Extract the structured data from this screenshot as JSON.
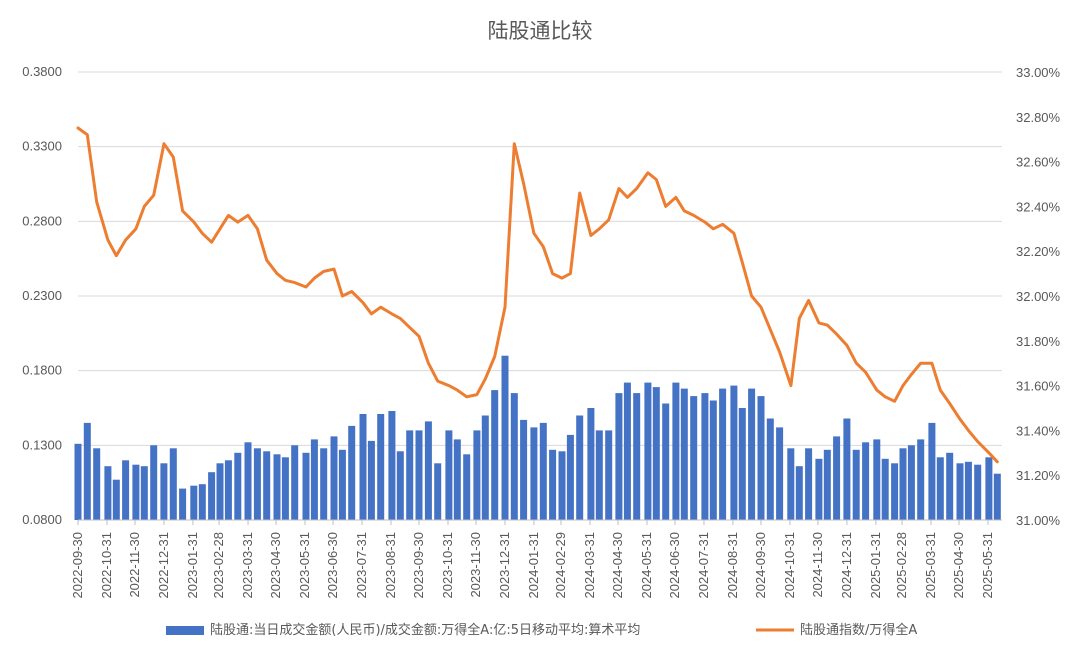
{
  "chart_data": {
    "type": "bar+line",
    "title": "陆股通比较",
    "x_tick_labels": [
      "2022-09-30",
      "2022-10-31",
      "2022-11-30",
      "2022-12-31",
      "2023-01-31",
      "2023-02-28",
      "2023-03-31",
      "2023-04-30",
      "2023-05-31",
      "2023-06-30",
      "2023-07-31",
      "2023-08-31",
      "2023-09-30",
      "2023-10-31",
      "2023-11-30",
      "2023-12-31",
      "2024-01-31",
      "2024-02-29",
      "2024-03-31",
      "2024-04-30",
      "2024-05-31",
      "2024-06-30",
      "2024-07-31",
      "2024-08-31",
      "2024-09-30",
      "2024-10-31",
      "2024-11-30",
      "2024-12-31",
      "2025-01-31",
      "2025-02-28",
      "2025-03-31",
      "2025-04-30",
      "2025-05-31"
    ],
    "left_axis": {
      "min": 0.08,
      "max": 0.38,
      "ticks": [
        "0.0800",
        "0.1300",
        "0.1800",
        "0.2300",
        "0.2800",
        "0.3300",
        "0.3800"
      ]
    },
    "right_axis": {
      "min": 31.0,
      "max": 33.0,
      "ticks": [
        "31.00%",
        "31.20%",
        "31.40%",
        "31.60%",
        "31.80%",
        "32.00%",
        "32.20%",
        "32.40%",
        "32.60%",
        "32.80%",
        "33.00%"
      ]
    },
    "grid": true,
    "legend_position": "bottom",
    "series": [
      {
        "name": "陆股通:当日成交金额(人民币)/成交金额:万得全A:亿:5日移动平均:算术平均",
        "kind": "bar",
        "axis": "left",
        "color": "#4472C4",
        "x": [
          "2022-09-30",
          "2022-10-10",
          "2022-10-20",
          "2022-11-01",
          "2022-11-10",
          "2022-11-20",
          "2022-12-01",
          "2022-12-10",
          "2022-12-20",
          "2022-12-31",
          "2023-01-10",
          "2023-01-20",
          "2023-02-01",
          "2023-02-10",
          "2023-02-20",
          "2023-03-01",
          "2023-03-10",
          "2023-03-20",
          "2023-03-31",
          "2023-04-10",
          "2023-04-20",
          "2023-05-01",
          "2023-05-10",
          "2023-05-20",
          "2023-06-01",
          "2023-06-10",
          "2023-06-20",
          "2023-07-01",
          "2023-07-10",
          "2023-07-20",
          "2023-08-01",
          "2023-08-10",
          "2023-08-20",
          "2023-09-01",
          "2023-09-10",
          "2023-09-20",
          "2023-09-30",
          "2023-10-10",
          "2023-10-20",
          "2023-11-01",
          "2023-11-10",
          "2023-11-20",
          "2023-12-01",
          "2023-12-10",
          "2023-12-20",
          "2023-12-31",
          "2024-01-10",
          "2024-01-20",
          "2024-01-31",
          "2024-02-10",
          "2024-02-20",
          "2024-03-01",
          "2024-03-10",
          "2024-03-20",
          "2024-04-01",
          "2024-04-10",
          "2024-04-20",
          "2024-05-01",
          "2024-05-10",
          "2024-05-20",
          "2024-06-01",
          "2024-06-10",
          "2024-06-20",
          "2024-07-01",
          "2024-07-10",
          "2024-07-20",
          "2024-08-01",
          "2024-08-10",
          "2024-08-20",
          "2024-09-01",
          "2024-09-10",
          "2024-09-20",
          "2024-09-30",
          "2024-10-10",
          "2024-10-20",
          "2024-11-01",
          "2024-11-10",
          "2024-11-20",
          "2024-12-01",
          "2024-12-10",
          "2024-12-20",
          "2024-12-31",
          "2025-01-10",
          "2025-01-20",
          "2025-02-01",
          "2025-02-10",
          "2025-02-20",
          "2025-03-01",
          "2025-03-10",
          "2025-03-20",
          "2025-04-01",
          "2025-04-10",
          "2025-04-20",
          "2025-05-01",
          "2025-05-10",
          "2025-05-20",
          "2025-06-01",
          "2025-06-10"
        ],
        "values": [
          0.131,
          0.145,
          0.128,
          0.116,
          0.107,
          0.12,
          0.117,
          0.116,
          0.13,
          0.118,
          0.128,
          0.101,
          0.103,
          0.104,
          0.112,
          0.118,
          0.12,
          0.125,
          0.132,
          0.128,
          0.126,
          0.124,
          0.122,
          0.13,
          0.125,
          0.134,
          0.128,
          0.136,
          0.127,
          0.143,
          0.151,
          0.133,
          0.151,
          0.153,
          0.126,
          0.14,
          0.14,
          0.146,
          0.118,
          0.14,
          0.134,
          0.124,
          0.14,
          0.15,
          0.167,
          0.19,
          0.165,
          0.147,
          0.142,
          0.145,
          0.127,
          0.126,
          0.137,
          0.15,
          0.155,
          0.14,
          0.14,
          0.165,
          0.172,
          0.165,
          0.172,
          0.169,
          0.158,
          0.172,
          0.168,
          0.163,
          0.165,
          0.16,
          0.168,
          0.17,
          0.155,
          0.168,
          0.163,
          0.148,
          0.142,
          0.128,
          0.116,
          0.128,
          0.121,
          0.127,
          0.136,
          0.148,
          0.127,
          0.132,
          0.134,
          0.121,
          0.118,
          0.128,
          0.13,
          0.134,
          0.145,
          0.122,
          0.125,
          0.118,
          0.119,
          0.117,
          0.122,
          0.111
        ]
      },
      {
        "name": "陆股通指数/万得全A",
        "kind": "line",
        "axis": "right",
        "color": "#ED7D31",
        "x": [
          "2022-09-30",
          "2022-10-10",
          "2022-10-20",
          "2022-11-01",
          "2022-11-10",
          "2022-11-20",
          "2022-12-01",
          "2022-12-10",
          "2022-12-20",
          "2022-12-31",
          "2023-01-10",
          "2023-01-20",
          "2023-02-01",
          "2023-02-10",
          "2023-02-20",
          "2023-03-01",
          "2023-03-10",
          "2023-03-20",
          "2023-03-31",
          "2023-04-10",
          "2023-04-20",
          "2023-05-01",
          "2023-05-10",
          "2023-05-20",
          "2023-06-01",
          "2023-06-10",
          "2023-06-20",
          "2023-07-01",
          "2023-07-10",
          "2023-07-20",
          "2023-08-01",
          "2023-08-10",
          "2023-08-20",
          "2023-09-01",
          "2023-09-10",
          "2023-09-20",
          "2023-09-30",
          "2023-10-10",
          "2023-10-20",
          "2023-11-01",
          "2023-11-10",
          "2023-11-20",
          "2023-12-01",
          "2023-12-10",
          "2023-12-20",
          "2023-12-31",
          "2024-01-10",
          "2024-01-20",
          "2024-01-31",
          "2024-02-10",
          "2024-02-20",
          "2024-03-01",
          "2024-03-10",
          "2024-03-20",
          "2024-04-01",
          "2024-04-10",
          "2024-04-20",
          "2024-05-01",
          "2024-05-10",
          "2024-05-20",
          "2024-06-01",
          "2024-06-10",
          "2024-06-20",
          "2024-07-01",
          "2024-07-10",
          "2024-07-20",
          "2024-08-01",
          "2024-08-10",
          "2024-08-20",
          "2024-09-01",
          "2024-09-10",
          "2024-09-20",
          "2024-09-30",
          "2024-10-10",
          "2024-10-20",
          "2024-11-01",
          "2024-11-10",
          "2024-11-20",
          "2024-12-01",
          "2024-12-10",
          "2024-12-20",
          "2024-12-31",
          "2025-01-10",
          "2025-01-20",
          "2025-02-01",
          "2025-02-10",
          "2025-02-20",
          "2025-03-01",
          "2025-03-10",
          "2025-03-20",
          "2025-04-01",
          "2025-04-10",
          "2025-04-20",
          "2025-05-01",
          "2025-05-10",
          "2025-05-20",
          "2025-06-01",
          "2025-06-10"
        ],
        "values": [
          32.75,
          32.72,
          32.42,
          32.25,
          32.18,
          32.25,
          32.3,
          32.4,
          32.45,
          32.68,
          32.62,
          32.38,
          32.33,
          32.28,
          32.24,
          32.3,
          32.36,
          32.33,
          32.36,
          32.3,
          32.16,
          32.1,
          32.07,
          32.06,
          32.04,
          32.08,
          32.11,
          32.12,
          32.0,
          32.02,
          31.97,
          31.92,
          31.95,
          31.92,
          31.9,
          31.86,
          31.82,
          31.7,
          31.62,
          31.6,
          31.58,
          31.55,
          31.56,
          31.63,
          31.73,
          31.95,
          32.68,
          32.5,
          32.28,
          32.22,
          32.1,
          32.08,
          32.1,
          32.46,
          32.27,
          32.3,
          32.34,
          32.48,
          32.44,
          32.48,
          32.55,
          32.52,
          32.4,
          32.44,
          32.38,
          32.36,
          32.33,
          32.3,
          32.32,
          32.28,
          32.15,
          32.0,
          31.95,
          31.85,
          31.75,
          31.6,
          31.9,
          31.98,
          31.88,
          31.87,
          31.83,
          31.78,
          31.7,
          31.66,
          31.58,
          31.55,
          31.53,
          31.6,
          31.65,
          31.7,
          31.7,
          31.58,
          31.52,
          31.45,
          31.4,
          31.35,
          31.3,
          31.26
        ]
      }
    ]
  }
}
